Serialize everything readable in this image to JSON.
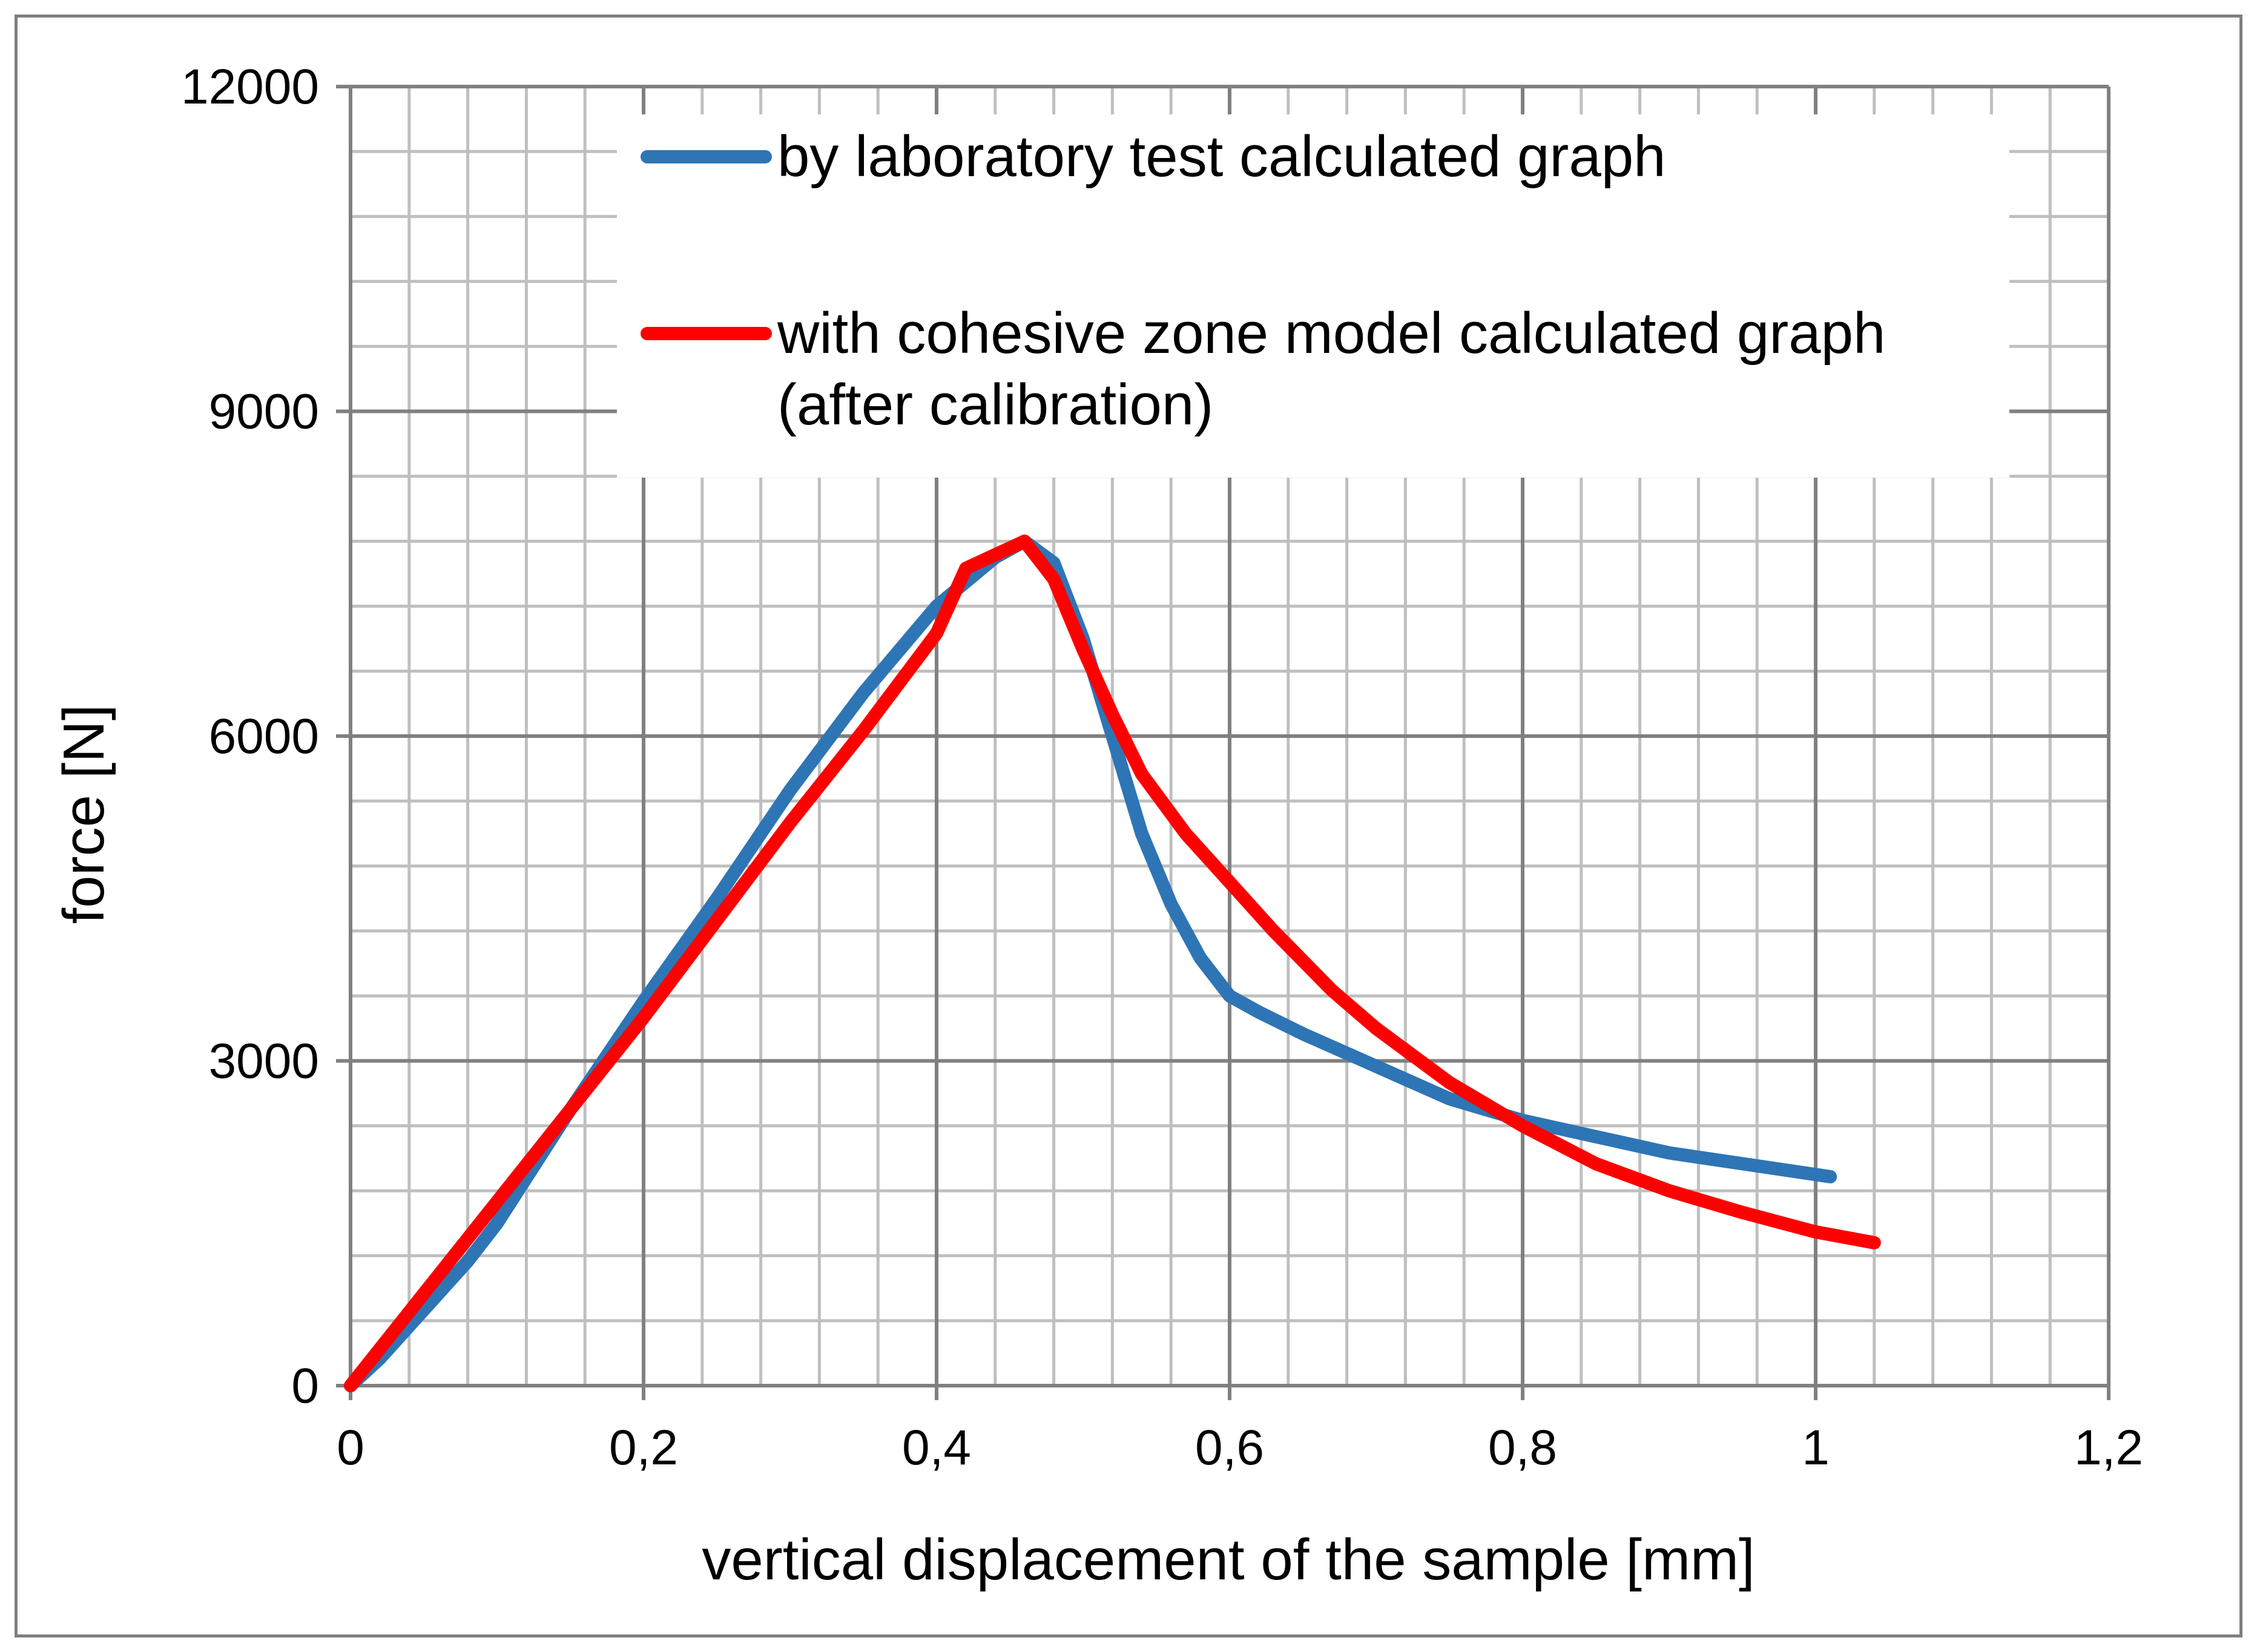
{
  "chart_data": {
    "type": "line",
    "title": "",
    "xlabel": "vertical displacement of the sample [mm]",
    "ylabel": "force [N]",
    "xlim": [
      0,
      1.2
    ],
    "ylim": [
      0,
      12000
    ],
    "x_major_step": 0.2,
    "y_major_step": 3000,
    "x_minor_step": 0.04,
    "y_minor_step": 600,
    "x_tick_labels": [
      "0",
      "0,2",
      "0,4",
      "0,6",
      "0,8",
      "1",
      "1,2"
    ],
    "y_tick_labels": [
      "0",
      "3000",
      "6000",
      "9000",
      "12000"
    ],
    "grid": true,
    "legend_position": "top-right",
    "series": [
      {
        "name": "by laboratory test calculated graph",
        "color": "#2e75b6",
        "points": [
          [
            0.0,
            0
          ],
          [
            0.02,
            250
          ],
          [
            0.05,
            700
          ],
          [
            0.08,
            1150
          ],
          [
            0.1,
            1500
          ],
          [
            0.15,
            2550
          ],
          [
            0.2,
            3550
          ],
          [
            0.25,
            4500
          ],
          [
            0.3,
            5500
          ],
          [
            0.35,
            6400
          ],
          [
            0.4,
            7200
          ],
          [
            0.44,
            7650
          ],
          [
            0.46,
            7800
          ],
          [
            0.48,
            7600
          ],
          [
            0.5,
            6900
          ],
          [
            0.52,
            6000
          ],
          [
            0.54,
            5100
          ],
          [
            0.56,
            4450
          ],
          [
            0.58,
            3950
          ],
          [
            0.6,
            3600
          ],
          [
            0.62,
            3450
          ],
          [
            0.65,
            3250
          ],
          [
            0.7,
            2950
          ],
          [
            0.75,
            2650
          ],
          [
            0.8,
            2450
          ],
          [
            0.85,
            2300
          ],
          [
            0.9,
            2150
          ],
          [
            0.95,
            2050
          ],
          [
            1.0,
            1950
          ],
          [
            1.01,
            1930
          ]
        ]
      },
      {
        "name": "with cohesive zone model calculated graph (after calibration)",
        "color": "#ff0000",
        "points": [
          [
            0.0,
            0
          ],
          [
            0.05,
            850
          ],
          [
            0.1,
            1700
          ],
          [
            0.15,
            2550
          ],
          [
            0.2,
            3400
          ],
          [
            0.25,
            4300
          ],
          [
            0.3,
            5200
          ],
          [
            0.35,
            6050
          ],
          [
            0.4,
            6950
          ],
          [
            0.42,
            7550
          ],
          [
            0.46,
            7800
          ],
          [
            0.48,
            7450
          ],
          [
            0.5,
            6800
          ],
          [
            0.52,
            6200
          ],
          [
            0.54,
            5650
          ],
          [
            0.57,
            5100
          ],
          [
            0.6,
            4650
          ],
          [
            0.63,
            4200
          ],
          [
            0.67,
            3650
          ],
          [
            0.7,
            3300
          ],
          [
            0.75,
            2800
          ],
          [
            0.8,
            2400
          ],
          [
            0.85,
            2050
          ],
          [
            0.9,
            1800
          ],
          [
            0.95,
            1600
          ],
          [
            1.0,
            1420
          ],
          [
            1.04,
            1320
          ]
        ]
      }
    ]
  }
}
